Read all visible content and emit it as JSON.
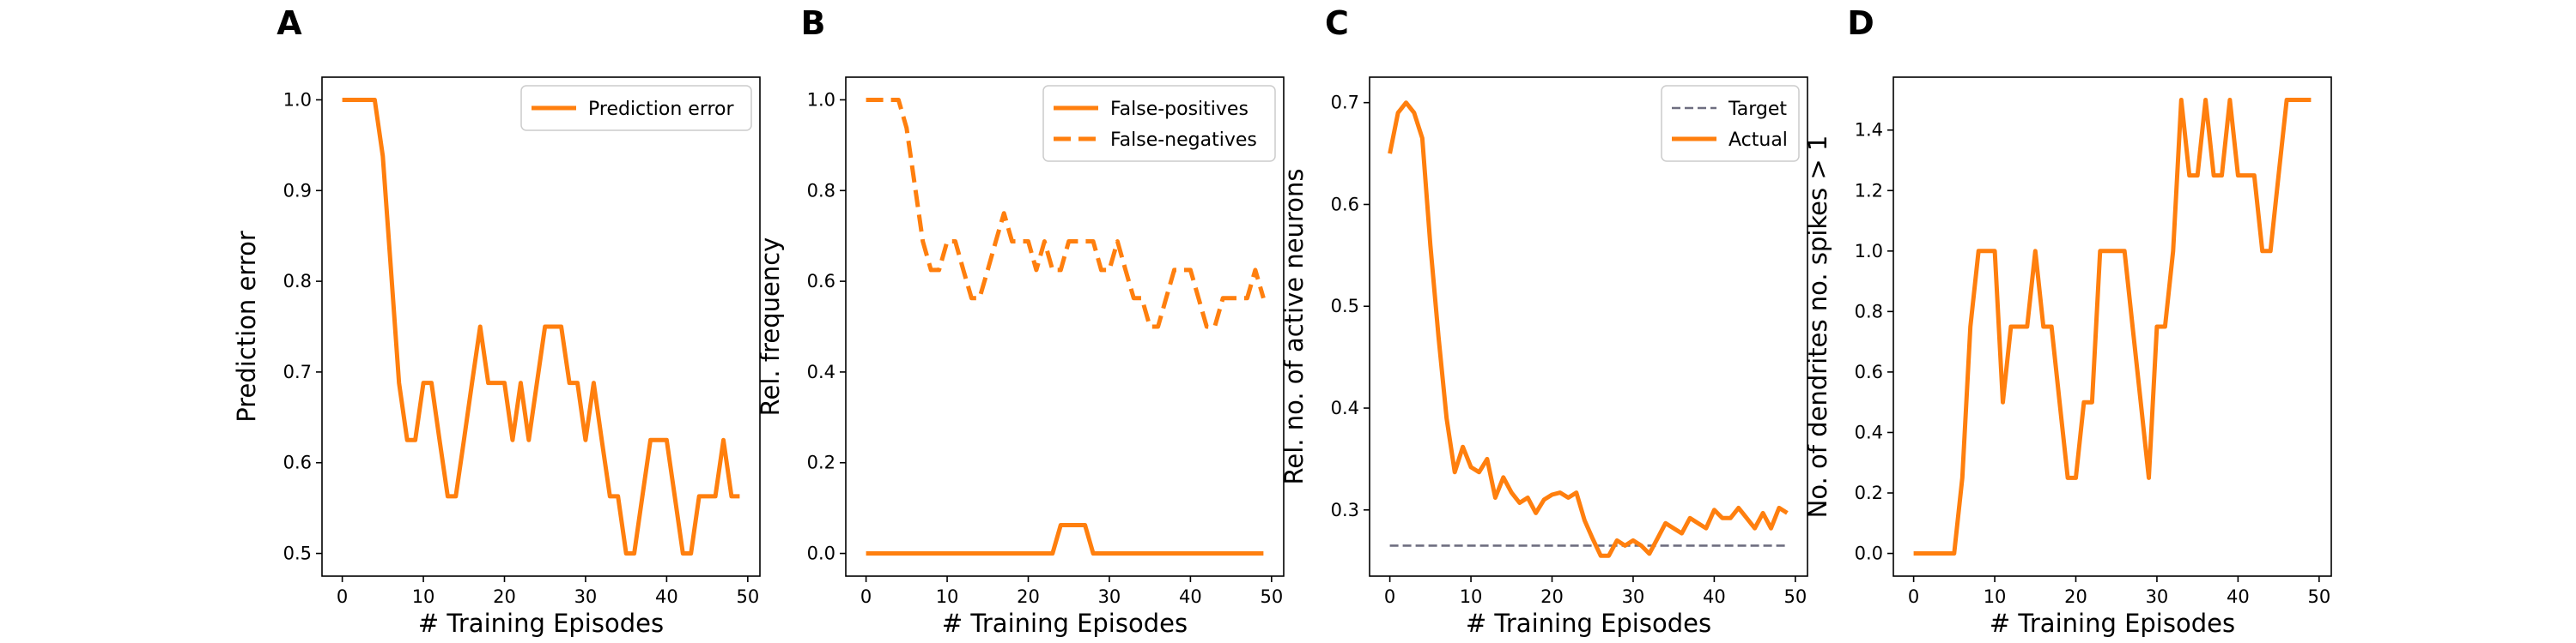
{
  "colors": {
    "series": "#ff7f0e",
    "target": "#6e6e80"
  },
  "chart_data": [
    {
      "type": "line",
      "panel_label": "A",
      "xlabel": "# Training Episodes",
      "ylabel": "Prediction error",
      "xlim": [
        -2.5,
        51.5
      ],
      "ylim": [
        0.475,
        1.025
      ],
      "xticks": [
        0,
        10,
        20,
        30,
        40,
        50
      ],
      "yticks": [
        0.5,
        0.6,
        0.7,
        0.8,
        0.9,
        1.0
      ],
      "xtick_labels": [
        "0",
        "10",
        "20",
        "30",
        "40",
        "50"
      ],
      "ytick_labels": [
        "0.5",
        "0.6",
        "0.7",
        "0.8",
        "0.9",
        "1.0"
      ],
      "legend_position": "upper right",
      "series": [
        {
          "name": "Prediction error",
          "style": "solid",
          "x": [
            0,
            1,
            2,
            3,
            4,
            5,
            6,
            7,
            8,
            9,
            10,
            11,
            12,
            13,
            14,
            15,
            16,
            17,
            18,
            19,
            20,
            21,
            22,
            23,
            24,
            25,
            26,
            27,
            28,
            29,
            30,
            31,
            32,
            33,
            34,
            35,
            36,
            37,
            38,
            39,
            40,
            41,
            42,
            43,
            44,
            45,
            46,
            47,
            48,
            49
          ],
          "y": [
            1.0,
            1.0,
            1.0,
            1.0,
            1.0,
            0.938,
            0.813,
            0.688,
            0.625,
            0.625,
            0.688,
            0.688,
            0.625,
            0.563,
            0.563,
            0.625,
            0.688,
            0.75,
            0.688,
            0.688,
            0.688,
            0.625,
            0.688,
            0.625,
            0.688,
            0.75,
            0.75,
            0.75,
            0.688,
            0.688,
            0.625,
            0.688,
            0.625,
            0.563,
            0.563,
            0.5,
            0.5,
            0.563,
            0.625,
            0.625,
            0.625,
            0.563,
            0.5,
            0.5,
            0.563,
            0.563,
            0.563,
            0.625,
            0.563,
            0.563
          ]
        }
      ]
    },
    {
      "type": "line",
      "panel_label": "B",
      "xlabel": "# Training Episodes",
      "ylabel": "Rel. frequency",
      "xlim": [
        -2.5,
        51.5
      ],
      "ylim": [
        -0.05,
        1.05
      ],
      "xticks": [
        0,
        10,
        20,
        30,
        40,
        50
      ],
      "yticks": [
        0.0,
        0.2,
        0.4,
        0.6,
        0.8,
        1.0
      ],
      "xtick_labels": [
        "0",
        "10",
        "20",
        "30",
        "40",
        "50"
      ],
      "ytick_labels": [
        "0.0",
        "0.2",
        "0.4",
        "0.6",
        "0.8",
        "1.0"
      ],
      "legend_position": "upper right",
      "series": [
        {
          "name": "False-positives",
          "style": "solid",
          "x": [
            0,
            1,
            2,
            3,
            4,
            5,
            6,
            7,
            8,
            9,
            10,
            11,
            12,
            13,
            14,
            15,
            16,
            17,
            18,
            19,
            20,
            21,
            22,
            23,
            24,
            25,
            26,
            27,
            28,
            29,
            30,
            31,
            32,
            33,
            34,
            35,
            36,
            37,
            38,
            39,
            40,
            41,
            42,
            43,
            44,
            45,
            46,
            47,
            48,
            49
          ],
          "y": [
            0,
            0,
            0,
            0,
            0,
            0,
            0,
            0,
            0,
            0,
            0,
            0,
            0,
            0,
            0,
            0,
            0,
            0,
            0,
            0,
            0,
            0,
            0,
            0,
            0.0625,
            0.0625,
            0.0625,
            0.0625,
            0,
            0,
            0,
            0,
            0,
            0,
            0,
            0,
            0,
            0,
            0,
            0,
            0,
            0,
            0,
            0,
            0,
            0,
            0,
            0,
            0,
            0
          ]
        },
        {
          "name": "False-negatives",
          "style": "dashed",
          "x": [
            0,
            1,
            2,
            3,
            4,
            5,
            6,
            7,
            8,
            9,
            10,
            11,
            12,
            13,
            14,
            15,
            16,
            17,
            18,
            19,
            20,
            21,
            22,
            23,
            24,
            25,
            26,
            27,
            28,
            29,
            30,
            31,
            32,
            33,
            34,
            35,
            36,
            37,
            38,
            39,
            40,
            41,
            42,
            43,
            44,
            45,
            46,
            47,
            48,
            49
          ],
          "y": [
            1.0,
            1.0,
            1.0,
            1.0,
            1.0,
            0.938,
            0.813,
            0.688,
            0.625,
            0.625,
            0.688,
            0.688,
            0.625,
            0.563,
            0.563,
            0.625,
            0.688,
            0.75,
            0.688,
            0.688,
            0.688,
            0.625,
            0.688,
            0.625,
            0.625,
            0.688,
            0.688,
            0.688,
            0.688,
            0.625,
            0.625,
            0.688,
            0.625,
            0.563,
            0.563,
            0.5,
            0.5,
            0.563,
            0.625,
            0.625,
            0.625,
            0.563,
            0.5,
            0.5,
            0.563,
            0.563,
            0.563,
            0.563,
            0.625,
            0.563
          ]
        }
      ]
    },
    {
      "type": "line",
      "panel_label": "C",
      "xlabel": "# Training Episodes",
      "ylabel": "Rel. no. of active neurons",
      "xlim": [
        -2.5,
        51.5
      ],
      "ylim": [
        0.235,
        0.725
      ],
      "xticks": [
        0,
        10,
        20,
        30,
        40,
        50
      ],
      "yticks": [
        0.3,
        0.4,
        0.5,
        0.6,
        0.7
      ],
      "xtick_labels": [
        "0",
        "10",
        "20",
        "30",
        "40",
        "50"
      ],
      "ytick_labels": [
        "0.3",
        "0.4",
        "0.5",
        "0.6",
        "0.7"
      ],
      "legend_position": "upper right",
      "series": [
        {
          "name": "Target",
          "style": "dashed",
          "x": [
            0,
            49
          ],
          "y": [
            0.265,
            0.265
          ]
        },
        {
          "name": "Actual",
          "style": "solid",
          "x": [
            0,
            1,
            2,
            3,
            4,
            5,
            6,
            7,
            8,
            9,
            10,
            11,
            12,
            13,
            14,
            15,
            16,
            17,
            18,
            19,
            20,
            21,
            22,
            23,
            24,
            25,
            26,
            27,
            28,
            29,
            30,
            31,
            32,
            33,
            34,
            35,
            36,
            37,
            38,
            39,
            40,
            41,
            42,
            43,
            44,
            45,
            46,
            47,
            48,
            49
          ],
          "y": [
            0.65,
            0.69,
            0.7,
            0.69,
            0.665,
            0.56,
            0.47,
            0.39,
            0.337,
            0.362,
            0.342,
            0.337,
            0.35,
            0.312,
            0.332,
            0.317,
            0.307,
            0.312,
            0.297,
            0.31,
            0.315,
            0.317,
            0.312,
            0.317,
            0.29,
            0.272,
            0.255,
            0.255,
            0.27,
            0.265,
            0.27,
            0.265,
            0.257,
            0.272,
            0.287,
            0.282,
            0.277,
            0.292,
            0.287,
            0.282,
            0.3,
            0.292,
            0.292,
            0.302,
            0.292,
            0.282,
            0.297,
            0.282,
            0.302,
            0.297
          ]
        }
      ]
    },
    {
      "type": "line",
      "panel_label": "D",
      "xlabel": "# Training Episodes",
      "ylabel": "No. of dendrites no. spikes > 1",
      "xlim": [
        -2.5,
        51.5
      ],
      "ylim": [
        -0.075,
        1.575
      ],
      "xticks": [
        0,
        10,
        20,
        30,
        40,
        50
      ],
      "yticks": [
        0.0,
        0.2,
        0.4,
        0.6,
        0.8,
        1.0,
        1.2,
        1.4
      ],
      "xtick_labels": [
        "0",
        "10",
        "20",
        "30",
        "40",
        "50"
      ],
      "ytick_labels": [
        "0.0",
        "0.2",
        "0.4",
        "0.6",
        "0.8",
        "1.0",
        "1.2",
        "1.4"
      ],
      "series": [
        {
          "name": "",
          "style": "solid",
          "x": [
            0,
            1,
            2,
            3,
            4,
            5,
            6,
            7,
            8,
            9,
            10,
            11,
            12,
            13,
            14,
            15,
            16,
            17,
            18,
            19,
            20,
            21,
            22,
            23,
            24,
            25,
            26,
            27,
            28,
            29,
            30,
            31,
            32,
            33,
            34,
            35,
            36,
            37,
            38,
            39,
            40,
            41,
            42,
            43,
            44,
            45,
            46,
            47,
            48,
            49
          ],
          "y": [
            0,
            0,
            0,
            0,
            0,
            0,
            0.25,
            0.75,
            1.0,
            1.0,
            1.0,
            0.5,
            0.75,
            0.75,
            0.75,
            1.0,
            0.75,
            0.75,
            0.5,
            0.25,
            0.25,
            0.5,
            0.5,
            1.0,
            1.0,
            1.0,
            1.0,
            0.75,
            0.5,
            0.25,
            0.75,
            0.75,
            1.0,
            1.5,
            1.25,
            1.25,
            1.5,
            1.25,
            1.25,
            1.5,
            1.25,
            1.25,
            1.25,
            1.0,
            1.0,
            1.25,
            1.5,
            1.5,
            1.5,
            1.5
          ]
        }
      ]
    }
  ]
}
